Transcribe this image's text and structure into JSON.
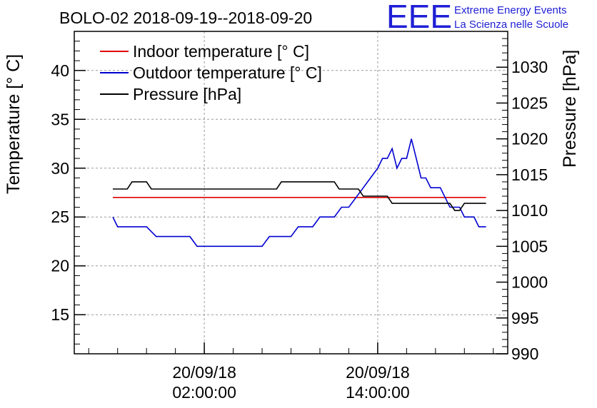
{
  "chart_data": {
    "type": "line",
    "title": "BOLO-02 2018-09-19--2018-09-20",
    "logo": {
      "letters": "EEE",
      "line1": "Extreme Energy Events",
      "line2": "La Scienza nelle Scuole",
      "color": "#1f1fd6"
    },
    "ylabel": "Temperature [° C]",
    "ylabel_right": "Pressure [hPa]",
    "ylim": [
      11,
      44
    ],
    "ylim_right": [
      990,
      1035
    ],
    "yticks": [
      15,
      20,
      25,
      30,
      35,
      40
    ],
    "yticks_right": [
      990,
      995,
      1000,
      1005,
      1010,
      1015,
      1020,
      1025,
      1030
    ],
    "x_axis": "time",
    "xlim": [
      "2018-09-19 17:00",
      "2018-09-20 23:00"
    ],
    "xticks": [
      {
        "at": "2018-09-20 02:00",
        "line1": "20/09/18",
        "line2": "02:00:00"
      },
      {
        "at": "2018-09-20 14:00",
        "line1": "20/09/18",
        "line2": "14:00:00"
      }
    ],
    "grid": true,
    "legend": "top-left",
    "series": [
      {
        "name": "Indoor temperature [° C]",
        "color": "#e00000",
        "axis": "left",
        "points": [
          [
            "2018-09-19 19:40",
            27.0
          ],
          [
            "2018-09-20 21:30",
            27.0
          ]
        ]
      },
      {
        "name": "Outdoor temperature [° C]",
        "color": "#0000d0",
        "axis": "left",
        "points": [
          [
            "2018-09-19 19:40",
            25.0
          ],
          [
            "2018-09-19 20:00",
            24.0
          ],
          [
            "2018-09-19 22:00",
            24.0
          ],
          [
            "2018-09-19 22:40",
            23.0
          ],
          [
            "2018-09-20 01:00",
            23.0
          ],
          [
            "2018-09-20 01:30",
            22.0
          ],
          [
            "2018-09-20 06:00",
            22.0
          ],
          [
            "2018-09-20 06:30",
            23.0
          ],
          [
            "2018-09-20 08:00",
            23.0
          ],
          [
            "2018-09-20 08:30",
            24.0
          ],
          [
            "2018-09-20 09:30",
            24.0
          ],
          [
            "2018-09-20 10:00",
            25.0
          ],
          [
            "2018-09-20 11:00",
            25.0
          ],
          [
            "2018-09-20 11:30",
            26.0
          ],
          [
            "2018-09-20 12:00",
            26.0
          ],
          [
            "2018-09-20 12:30",
            27.0
          ],
          [
            "2018-09-20 13:00",
            28.0
          ],
          [
            "2018-09-20 13:30",
            29.0
          ],
          [
            "2018-09-20 14:00",
            30.0
          ],
          [
            "2018-09-20 14:20",
            31.0
          ],
          [
            "2018-09-20 14:40",
            31.0
          ],
          [
            "2018-09-20 15:00",
            32.0
          ],
          [
            "2018-09-20 15:20",
            30.0
          ],
          [
            "2018-09-20 15:40",
            31.0
          ],
          [
            "2018-09-20 16:00",
            31.0
          ],
          [
            "2018-09-20 16:20",
            33.0
          ],
          [
            "2018-09-20 16:40",
            31.0
          ],
          [
            "2018-09-20 17:00",
            29.0
          ],
          [
            "2018-09-20 17:20",
            29.0
          ],
          [
            "2018-09-20 17:40",
            28.0
          ],
          [
            "2018-09-20 18:20",
            28.0
          ],
          [
            "2018-09-20 18:40",
            27.0
          ],
          [
            "2018-09-20 19:00",
            26.0
          ],
          [
            "2018-09-20 19:40",
            26.0
          ],
          [
            "2018-09-20 20:00",
            25.0
          ],
          [
            "2018-09-20 20:40",
            25.0
          ],
          [
            "2018-09-20 21:00",
            24.0
          ],
          [
            "2018-09-20 21:30",
            24.0
          ]
        ]
      },
      {
        "name": "Pressure [hPa]",
        "color": "#000000",
        "axis": "right",
        "points": [
          [
            "2018-09-19 19:40",
            1013
          ],
          [
            "2018-09-19 20:40",
            1013
          ],
          [
            "2018-09-19 21:00",
            1014
          ],
          [
            "2018-09-19 22:00",
            1014
          ],
          [
            "2018-09-19 22:20",
            1013
          ],
          [
            "2018-09-20 07:00",
            1013
          ],
          [
            "2018-09-20 07:20",
            1014
          ],
          [
            "2018-09-20 11:00",
            1014
          ],
          [
            "2018-09-20 11:20",
            1013
          ],
          [
            "2018-09-20 12:40",
            1013
          ],
          [
            "2018-09-20 13:00",
            1012
          ],
          [
            "2018-09-20 14:00",
            1012
          ],
          [
            "2018-09-20 14:40",
            1012
          ],
          [
            "2018-09-20 15:00",
            1011
          ],
          [
            "2018-09-20 19:00",
            1011
          ],
          [
            "2018-09-20 19:20",
            1010
          ],
          [
            "2018-09-20 19:40",
            1010
          ],
          [
            "2018-09-20 20:00",
            1011
          ],
          [
            "2018-09-20 21:30",
            1011
          ]
        ]
      }
    ]
  }
}
